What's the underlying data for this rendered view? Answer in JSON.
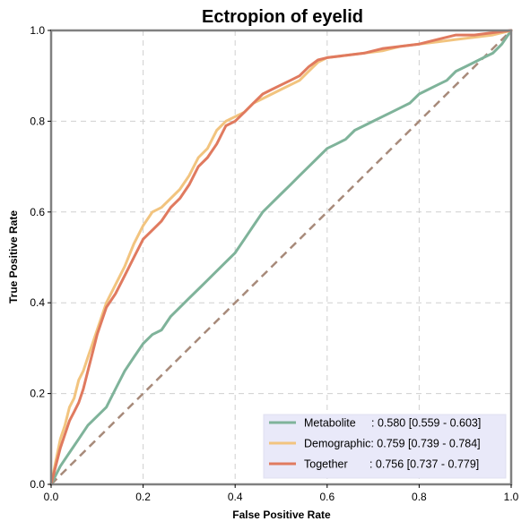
{
  "chart_data": {
    "type": "line",
    "title": "Ectropion of eyelid",
    "xlabel": "False Positive Rate",
    "ylabel": "True Positive Rate",
    "xlim": [
      0,
      1
    ],
    "ylim": [
      0,
      1
    ],
    "x_ticks": [
      "0.0",
      "0.2",
      "0.4",
      "0.6",
      "0.8",
      "1.0"
    ],
    "y_ticks": [
      "0.0",
      "0.2",
      "0.4",
      "0.6",
      "0.8",
      "1.0"
    ],
    "grid": true,
    "legend_position": "lower-right",
    "diagonal_color": "#a78a7a",
    "series": [
      {
        "name": "Metabolite",
        "legend_label": "Metabolite     : 0.580 [0.559 - 0.603]",
        "color": "#7fb39a",
        "x": [
          0.0,
          0.01,
          0.02,
          0.04,
          0.06,
          0.08,
          0.1,
          0.12,
          0.14,
          0.16,
          0.18,
          0.2,
          0.22,
          0.24,
          0.26,
          0.28,
          0.3,
          0.32,
          0.34,
          0.36,
          0.38,
          0.4,
          0.42,
          0.44,
          0.46,
          0.48,
          0.5,
          0.52,
          0.54,
          0.56,
          0.58,
          0.6,
          0.62,
          0.64,
          0.66,
          0.68,
          0.7,
          0.72,
          0.74,
          0.76,
          0.78,
          0.8,
          0.82,
          0.84,
          0.86,
          0.88,
          0.9,
          0.92,
          0.94,
          0.96,
          0.98,
          1.0
        ],
        "y": [
          0.0,
          0.02,
          0.04,
          0.07,
          0.1,
          0.13,
          0.15,
          0.17,
          0.21,
          0.25,
          0.28,
          0.31,
          0.33,
          0.34,
          0.37,
          0.39,
          0.41,
          0.43,
          0.45,
          0.47,
          0.49,
          0.51,
          0.54,
          0.57,
          0.6,
          0.62,
          0.64,
          0.66,
          0.68,
          0.7,
          0.72,
          0.74,
          0.75,
          0.76,
          0.78,
          0.79,
          0.8,
          0.81,
          0.82,
          0.83,
          0.84,
          0.86,
          0.87,
          0.88,
          0.89,
          0.91,
          0.92,
          0.93,
          0.94,
          0.95,
          0.97,
          1.0
        ]
      },
      {
        "name": "Demographic",
        "legend_label": "Demographic: 0.759 [0.739 - 0.784]",
        "color": "#f2c47f",
        "x": [
          0.0,
          0.01,
          0.02,
          0.03,
          0.04,
          0.05,
          0.06,
          0.07,
          0.08,
          0.09,
          0.1,
          0.12,
          0.14,
          0.16,
          0.18,
          0.2,
          0.22,
          0.24,
          0.26,
          0.28,
          0.3,
          0.32,
          0.34,
          0.36,
          0.38,
          0.4,
          0.42,
          0.44,
          0.46,
          0.48,
          0.5,
          0.52,
          0.54,
          0.56,
          0.58,
          0.6,
          0.64,
          0.68,
          0.72,
          0.76,
          0.8,
          0.84,
          0.88,
          0.92,
          0.96,
          1.0
        ],
        "y": [
          0.0,
          0.05,
          0.1,
          0.13,
          0.17,
          0.19,
          0.23,
          0.25,
          0.28,
          0.31,
          0.34,
          0.4,
          0.44,
          0.48,
          0.53,
          0.57,
          0.6,
          0.61,
          0.63,
          0.65,
          0.68,
          0.72,
          0.74,
          0.78,
          0.8,
          0.81,
          0.82,
          0.84,
          0.85,
          0.86,
          0.87,
          0.88,
          0.89,
          0.91,
          0.93,
          0.94,
          0.945,
          0.95,
          0.955,
          0.965,
          0.97,
          0.975,
          0.98,
          0.985,
          0.99,
          1.0
        ]
      },
      {
        "name": "Together",
        "legend_label": "Together       : 0.756 [0.737 - 0.779]",
        "color": "#e07a5f",
        "x": [
          0.0,
          0.01,
          0.02,
          0.03,
          0.04,
          0.05,
          0.06,
          0.07,
          0.08,
          0.09,
          0.1,
          0.12,
          0.14,
          0.16,
          0.18,
          0.2,
          0.22,
          0.24,
          0.26,
          0.28,
          0.3,
          0.32,
          0.34,
          0.36,
          0.38,
          0.4,
          0.42,
          0.44,
          0.46,
          0.48,
          0.5,
          0.52,
          0.54,
          0.56,
          0.58,
          0.6,
          0.64,
          0.68,
          0.72,
          0.76,
          0.8,
          0.84,
          0.88,
          0.92,
          0.96,
          1.0
        ],
        "y": [
          0.0,
          0.04,
          0.08,
          0.11,
          0.14,
          0.16,
          0.18,
          0.21,
          0.25,
          0.29,
          0.33,
          0.39,
          0.42,
          0.46,
          0.5,
          0.54,
          0.56,
          0.58,
          0.61,
          0.63,
          0.66,
          0.7,
          0.72,
          0.75,
          0.79,
          0.8,
          0.82,
          0.84,
          0.86,
          0.87,
          0.88,
          0.89,
          0.9,
          0.92,
          0.935,
          0.94,
          0.945,
          0.95,
          0.96,
          0.965,
          0.97,
          0.98,
          0.99,
          0.99,
          0.995,
          1.0
        ]
      }
    ]
  }
}
